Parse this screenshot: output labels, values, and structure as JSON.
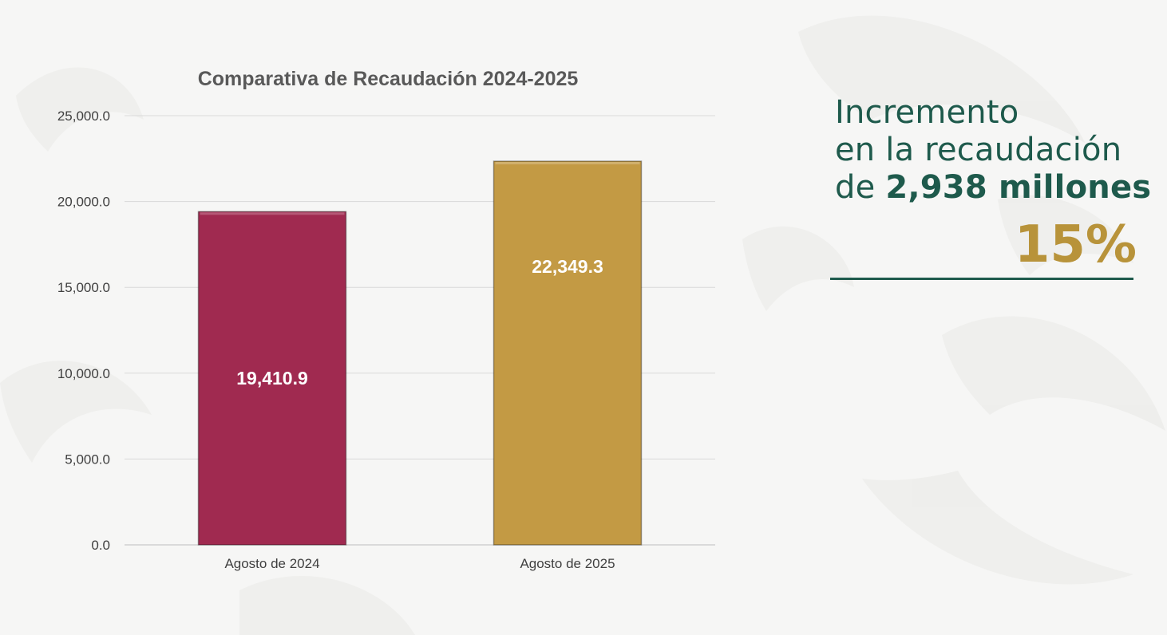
{
  "chart_data": {
    "type": "bar",
    "title": "Comparativa de Recaudación 2024-2025",
    "categories": [
      "Agosto de 2024",
      "Agosto de 2025"
    ],
    "values": [
      19410.9,
      22349.3
    ],
    "value_labels": [
      "19,410.9",
      "22,349.3"
    ],
    "colors": [
      "#a02a50",
      "#c39a44"
    ],
    "ylim": [
      0,
      25000
    ],
    "yticks": [
      0,
      5000,
      10000,
      15000,
      20000,
      25000
    ],
    "ytick_labels": [
      "0.0",
      "5,000.0",
      "10,000.0",
      "15,000.0",
      "20,000.0",
      "25,000.0"
    ],
    "xlabel": "",
    "ylabel": "",
    "grid": true,
    "legend": "none"
  },
  "callout": {
    "line1": "Incremento",
    "line2": "en la recaudación",
    "line3_prefix": "de ",
    "line3_amount": "2,938 millones",
    "percent": "15%"
  }
}
